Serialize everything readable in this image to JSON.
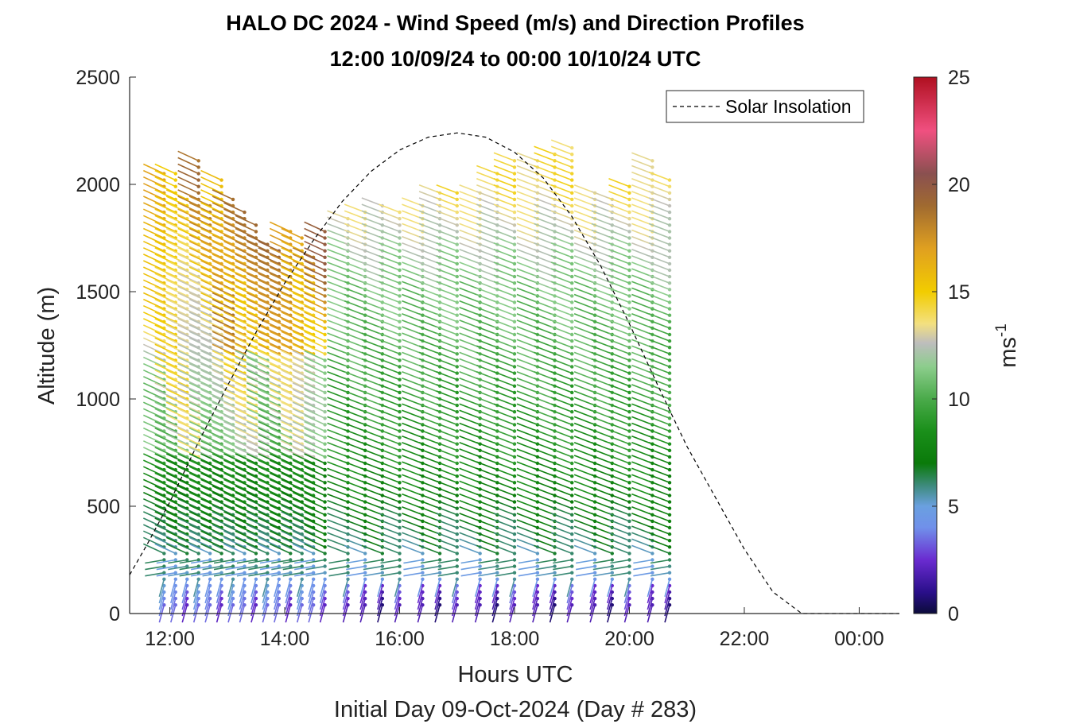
{
  "chart_data": {
    "type": "scatter",
    "title": "HALO DC 2024 - Wind Speed (m/s) and Direction Profiles",
    "subtitle": "12:00 10/09/24 to 00:00 10/10/24  UTC",
    "xlabel": "Hours UTC",
    "xlabel2": "Initial Day 09-Oct-2024 (Day # 283)",
    "ylabel": "Altitude (m)",
    "xlim": [
      11.3,
      24.7
    ],
    "ylim": [
      0,
      2500
    ],
    "x_ticks": [
      12,
      14,
      16,
      18,
      20,
      22,
      24
    ],
    "x_tick_labels": [
      "12:00",
      "14:00",
      "16:00",
      "18:00",
      "20:00",
      "22:00",
      "00:00"
    ],
    "y_ticks": [
      0,
      500,
      1000,
      1500,
      2000,
      2500
    ],
    "y_tick_labels": [
      "0",
      "500",
      "1000",
      "1500",
      "2000",
      "2500"
    ],
    "colorbar": {
      "label": "ms",
      "label_superscript": "-1",
      "range": [
        0,
        25
      ],
      "ticks": [
        0,
        5,
        10,
        15,
        20,
        25
      ],
      "tick_labels": [
        "0",
        "5",
        "10",
        "15",
        "20",
        "25"
      ],
      "colors": [
        {
          "v": 0.0,
          "c": "#0b0b3a"
        },
        {
          "v": 1.0,
          "c": "#2a0f8a"
        },
        {
          "v": 2.5,
          "c": "#6a2bd0"
        },
        {
          "v": 4.0,
          "c": "#7090ea"
        },
        {
          "v": 5.0,
          "c": "#6aa0e0"
        },
        {
          "v": 6.0,
          "c": "#3c8a78"
        },
        {
          "v": 7.0,
          "c": "#0a7a0a"
        },
        {
          "v": 8.5,
          "c": "#1a8f1a"
        },
        {
          "v": 10.0,
          "c": "#4aaa4a"
        },
        {
          "v": 11.5,
          "c": "#8ccd8c"
        },
        {
          "v": 12.6,
          "c": "#bdbdbd"
        },
        {
          "v": 13.5,
          "c": "#f3e080"
        },
        {
          "v": 15.0,
          "c": "#f2cc00"
        },
        {
          "v": 17.0,
          "c": "#e0a020"
        },
        {
          "v": 19.0,
          "c": "#a06a30"
        },
        {
          "v": 20.5,
          "c": "#8a5050"
        },
        {
          "v": 22.5,
          "c": "#f05080"
        },
        {
          "v": 25.0,
          "c": "#b01020"
        }
      ]
    },
    "legend": {
      "entries": [
        "Solar Insolation"
      ],
      "location": "top-right"
    },
    "series": [
      {
        "name": "Solar Insolation",
        "style": "dashed-black",
        "x": [
          11.3,
          11.6,
          12.0,
          12.5,
          13.0,
          13.5,
          14.0,
          14.5,
          15.0,
          15.5,
          16.0,
          16.5,
          17.0,
          17.5,
          18.0,
          18.5,
          19.0,
          19.5,
          20.0,
          20.5,
          21.0,
          21.5,
          22.0,
          22.5,
          23.0,
          23.5,
          24.0,
          24.7
        ],
        "y": [
          180,
          320,
          520,
          800,
          1060,
          1310,
          1540,
          1740,
          1920,
          2060,
          2160,
          2220,
          2240,
          2220,
          2150,
          2030,
          1850,
          1620,
          1350,
          1060,
          780,
          540,
          300,
          100,
          0,
          0,
          0,
          0
        ]
      }
    ],
    "wind_profiles": {
      "description": "wind barbs: each profile time (hours UTC) has samples every ~30 m; color = wind speed",
      "times": [
        11.9,
        12.1,
        12.3,
        12.5,
        12.7,
        12.9,
        13.1,
        13.3,
        13.5,
        13.7,
        13.9,
        14.1,
        14.3,
        14.5,
        14.7,
        15.1,
        15.4,
        15.7,
        16.0,
        16.4,
        16.7,
        17.0,
        17.4,
        17.7,
        18.0,
        18.4,
        18.7,
        19.0,
        19.4,
        19.7,
        20.0,
        20.4,
        20.7
      ],
      "top_altitudes": [
        2060,
        2050,
        1950,
        2130,
        1900,
        2020,
        1940,
        1880,
        1830,
        1730,
        1690,
        1790,
        1770,
        1670,
        1800,
        1860,
        1880,
        1900,
        1870,
        1900,
        1970,
        1960,
        1980,
        2050,
        2120,
        2130,
        2160,
        2170,
        1980,
        1930,
        1990,
        2120,
        2040
      ],
      "speed_by_altitude": [
        {
          "alt": 50,
          "speed": 3.0
        },
        {
          "alt": 200,
          "speed": 5.5
        },
        {
          "alt": 500,
          "speed": 7.5
        },
        {
          "alt": 1000,
          "speed": 9.5
        },
        {
          "alt": 1500,
          "speed": 11.0
        },
        {
          "alt": 2000,
          "speed": 14.0
        }
      ]
    }
  }
}
